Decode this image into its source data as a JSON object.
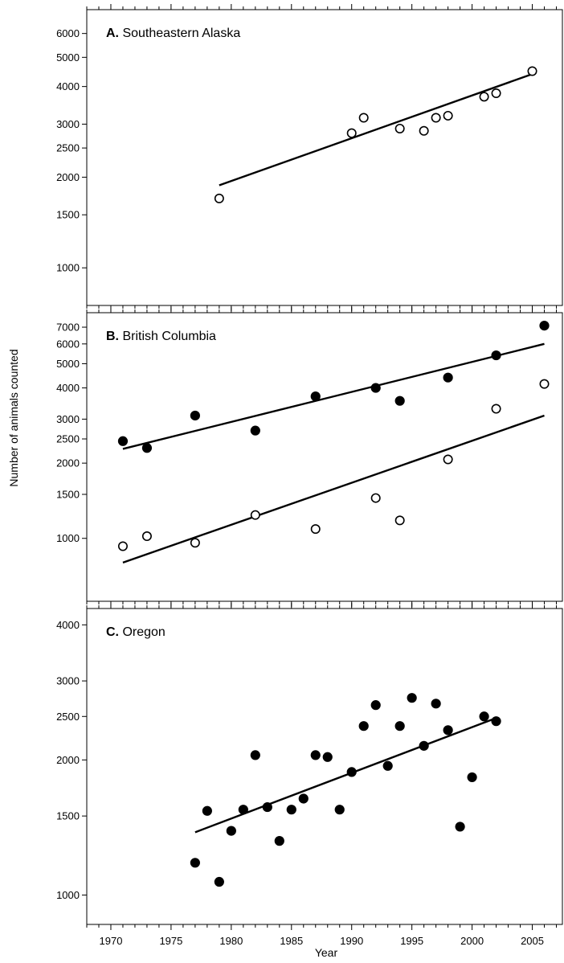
{
  "figure": {
    "ylabel": "Number of animals counted",
    "xlabel": "Year",
    "x_ticks": [
      1970,
      1975,
      1980,
      1985,
      1990,
      1995,
      2000,
      2005
    ],
    "x_range": [
      1968,
      2007.5
    ]
  },
  "chart_data": [
    {
      "type": "scatter",
      "panel_letter": "A.",
      "panel_name": "Southeastern Alaska",
      "y_scale": "log",
      "y_range": [
        750,
        7200
      ],
      "y_ticks": [
        1000,
        1500,
        2000,
        2500,
        3000,
        4000,
        5000,
        6000
      ],
      "series": [
        {
          "marker": "open",
          "points": [
            {
              "x": 1979,
              "y": 1700
            },
            {
              "x": 1990,
              "y": 2800
            },
            {
              "x": 1991,
              "y": 3150
            },
            {
              "x": 1994,
              "y": 2900
            },
            {
              "x": 1996,
              "y": 2850
            },
            {
              "x": 1997,
              "y": 3150
            },
            {
              "x": 1998,
              "y": 3200
            },
            {
              "x": 2001,
              "y": 3700
            },
            {
              "x": 2002,
              "y": 3800
            },
            {
              "x": 2005,
              "y": 4500
            }
          ],
          "trend": [
            {
              "x": 1979,
              "y": 1880
            },
            {
              "x": 2005,
              "y": 4400
            }
          ]
        }
      ]
    },
    {
      "type": "scatter",
      "panel_letter": "B.",
      "panel_name": "British Columbia",
      "y_scale": "log",
      "y_range": [
        560,
        8000
      ],
      "y_ticks": [
        1000,
        1500,
        2000,
        2500,
        3000,
        4000,
        5000,
        6000,
        7000
      ],
      "series": [
        {
          "marker": "filled",
          "points": [
            {
              "x": 1971,
              "y": 2450
            },
            {
              "x": 1973,
              "y": 2300
            },
            {
              "x": 1977,
              "y": 3100
            },
            {
              "x": 1982,
              "y": 2700
            },
            {
              "x": 1987,
              "y": 3700
            },
            {
              "x": 1992,
              "y": 4000
            },
            {
              "x": 1994,
              "y": 3550
            },
            {
              "x": 1998,
              "y": 4400
            },
            {
              "x": 2002,
              "y": 5400
            },
            {
              "x": 2006,
              "y": 7100
            }
          ],
          "trend": [
            {
              "x": 1971,
              "y": 2280
            },
            {
              "x": 2006,
              "y": 6000
            }
          ]
        },
        {
          "marker": "open",
          "points": [
            {
              "x": 1971,
              "y": 930
            },
            {
              "x": 1973,
              "y": 1020
            },
            {
              "x": 1977,
              "y": 960
            },
            {
              "x": 1982,
              "y": 1240
            },
            {
              "x": 1987,
              "y": 1090
            },
            {
              "x": 1992,
              "y": 1450
            },
            {
              "x": 1994,
              "y": 1180
            },
            {
              "x": 1998,
              "y": 2070
            },
            {
              "x": 2002,
              "y": 3300
            },
            {
              "x": 2006,
              "y": 4150
            }
          ],
          "trend": [
            {
              "x": 1971,
              "y": 800
            },
            {
              "x": 2006,
              "y": 3100
            }
          ]
        }
      ]
    },
    {
      "type": "scatter",
      "panel_letter": "C.",
      "panel_name": "Oregon",
      "y_scale": "log",
      "y_range": [
        860,
        4350
      ],
      "y_ticks": [
        1000,
        1500,
        2000,
        2500,
        3000,
        4000
      ],
      "series": [
        {
          "marker": "filled",
          "points": [
            {
              "x": 1977,
              "y": 1180
            },
            {
              "x": 1978,
              "y": 1540
            },
            {
              "x": 1979,
              "y": 1070
            },
            {
              "x": 1980,
              "y": 1390
            },
            {
              "x": 1981,
              "y": 1550
            },
            {
              "x": 1982,
              "y": 2050
            },
            {
              "x": 1983,
              "y": 1570
            },
            {
              "x": 1984,
              "y": 1320
            },
            {
              "x": 1985,
              "y": 1550
            },
            {
              "x": 1986,
              "y": 1640
            },
            {
              "x": 1987,
              "y": 2050
            },
            {
              "x": 1988,
              "y": 2030
            },
            {
              "x": 1989,
              "y": 1550
            },
            {
              "x": 1990,
              "y": 1880
            },
            {
              "x": 1991,
              "y": 2380
            },
            {
              "x": 1992,
              "y": 2650
            },
            {
              "x": 1993,
              "y": 1940
            },
            {
              "x": 1994,
              "y": 2380
            },
            {
              "x": 1995,
              "y": 2750
            },
            {
              "x": 1996,
              "y": 2150
            },
            {
              "x": 1997,
              "y": 2670
            },
            {
              "x": 1998,
              "y": 2330
            },
            {
              "x": 1999,
              "y": 1420
            },
            {
              "x": 2000,
              "y": 1830
            },
            {
              "x": 2001,
              "y": 2500
            },
            {
              "x": 2002,
              "y": 2440
            }
          ],
          "trend": [
            {
              "x": 1977,
              "y": 1380
            },
            {
              "x": 2002,
              "y": 2480
            }
          ]
        }
      ]
    }
  ]
}
